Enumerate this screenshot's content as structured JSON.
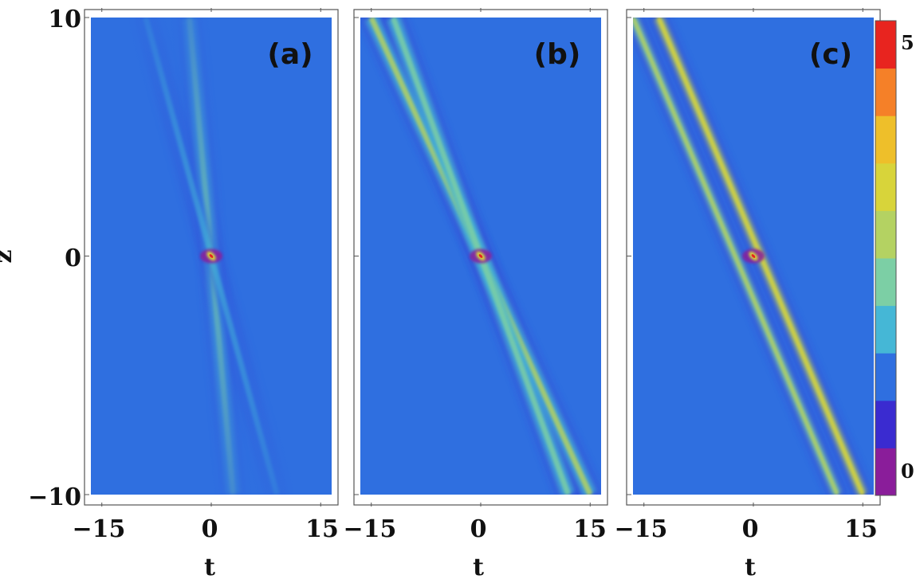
{
  "chart_data": {
    "type": "heatmap",
    "ylabel": "z",
    "panels": [
      {
        "label": "(a)",
        "xlabel": "t",
        "xlim": [
          -16.5,
          16.5
        ],
        "ylim": [
          -10,
          10
        ],
        "xticks": [
          -15,
          0,
          15
        ],
        "xtick_labels": [
          "−15",
          "0",
          "15"
        ],
        "yticks": [
          -10,
          0,
          10
        ],
        "ytick_labels": [
          "−10",
          "0",
          "10"
        ],
        "background_value": 1,
        "peak_value": 5,
        "peak_t": 0,
        "peak_z": 0,
        "beams": [
          {
            "name": "",
            "t_at_z10": -3,
            "t_at_zminus10": 3,
            "peak_value": 2.2
          },
          {
            "name": "",
            "t_at_z10": -9,
            "t_at_zminus10": 9,
            "peak_value": 1.8
          }
        ]
      },
      {
        "label": "(b)",
        "xlabel": "t",
        "xlim": [
          -16.5,
          16.5
        ],
        "ylim": [
          -10,
          10
        ],
        "xticks": [
          -15,
          0,
          15
        ],
        "xtick_labels": [
          "−15",
          "0",
          "15"
        ],
        "background_value": 1,
        "peak_value": 5,
        "peak_t": 0,
        "peak_z": 0,
        "beams": [
          {
            "name": "",
            "t_at_z10": -15,
            "t_at_zminus10": 15,
            "peak_value": 2.5
          },
          {
            "name": "",
            "t_at_z10": -12,
            "t_at_zminus10": 12,
            "peak_value": 2.2
          }
        ]
      },
      {
        "label": "(c)",
        "xlabel": "t",
        "xlim": [
          -16.5,
          16.5
        ],
        "ylim": [
          -10,
          10
        ],
        "xticks": [
          -15,
          0,
          15
        ],
        "xtick_labels": [
          "−15",
          "0",
          "15"
        ],
        "background_value": 1,
        "peak_value": 5,
        "peak_t": 0,
        "peak_z": 0,
        "beams": [
          {
            "name": "",
            "t_at_z10": -13,
            "t_at_zminus10": 15,
            "peak_value": 3.2
          },
          {
            "name": "",
            "t_at_z10": -16.5,
            "t_at_zminus10": 11.5,
            "peak_value": 2.8
          }
        ]
      }
    ],
    "colorbar": {
      "range": [
        -0.5,
        5.5
      ],
      "labels": [
        {
          "value": 0,
          "text": "0"
        },
        {
          "value": 5,
          "text": "5"
        }
      ],
      "colors": [
        "#8a1d9a",
        "#3a2bd0",
        "#2f6fe0",
        "#45b7d6",
        "#7ccfa5",
        "#b4d262",
        "#d8d43a",
        "#eebf2a",
        "#f58028",
        "#e8241f"
      ]
    }
  }
}
